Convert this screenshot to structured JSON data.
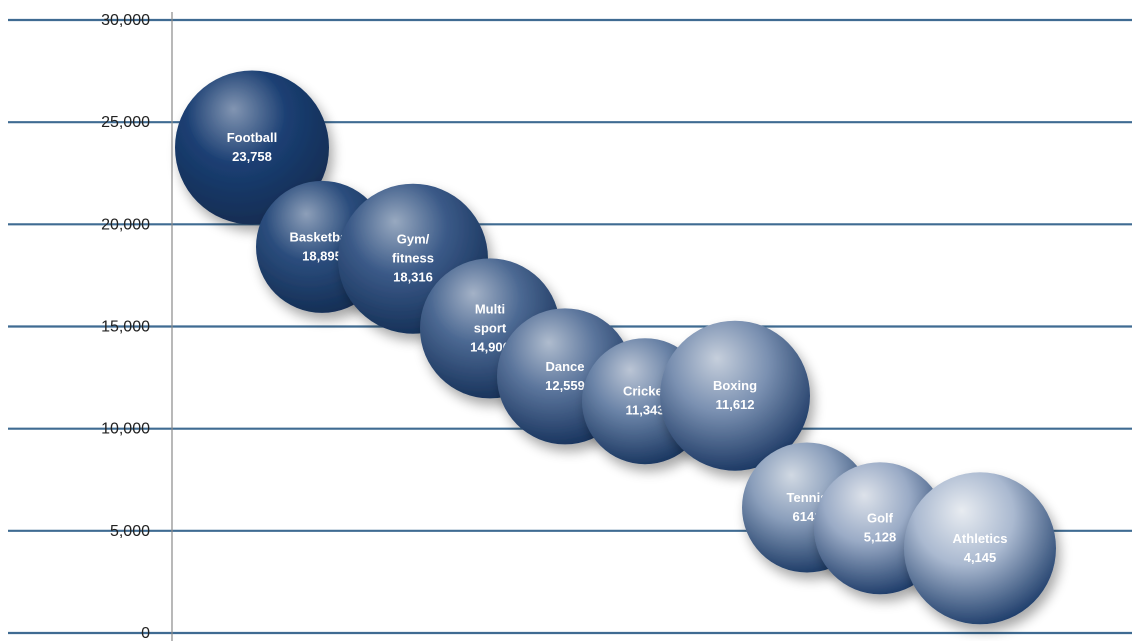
{
  "colors": {
    "background": "#ffffff",
    "gridline": "#3f6b92",
    "axis": "#8a8a8a",
    "sphere_dark": "#1b3f73",
    "sphere_light": "#aab9d0"
  },
  "chart_data": {
    "type": "scatter",
    "title": "",
    "xlabel": "",
    "ylabel": "",
    "ylim": [
      0,
      30000
    ],
    "yticks": [
      {
        "value": 0,
        "label": "0"
      },
      {
        "value": 5000,
        "label": "5,000"
      },
      {
        "value": 10000,
        "label": "10,000"
      },
      {
        "value": 15000,
        "label": "15,000"
      },
      {
        "value": 20000,
        "label": "20,000"
      },
      {
        "value": 25000,
        "label": "25,000"
      },
      {
        "value": 30000,
        "label": "30,000"
      }
    ],
    "grid": true,
    "legend": "none",
    "points": [
      {
        "category": "Football",
        "value": 23758,
        "lines": [
          "Football",
          "23,758"
        ]
      },
      {
        "category": "Basketball",
        "value": 18895,
        "lines": [
          "Basketball",
          "18,895"
        ]
      },
      {
        "category": "Gym/ fitness",
        "value": 18316,
        "lines": [
          "Gym/",
          "fitness",
          "18,316"
        ]
      },
      {
        "category": "Multi sport",
        "value": 14906,
        "lines": [
          "Multi",
          "sport",
          "14,906"
        ]
      },
      {
        "category": "Dance",
        "value": 12559,
        "lines": [
          "Dance",
          "12,559"
        ]
      },
      {
        "category": "Cricket",
        "value": 11343,
        "lines": [
          "Cricket",
          "11,343"
        ]
      },
      {
        "category": "Boxing",
        "value": 11612,
        "lines": [
          "Boxing",
          "11,612"
        ]
      },
      {
        "category": "Tennis",
        "value": 6141,
        "lines": [
          "Tennis",
          "6141"
        ]
      },
      {
        "category": "Golf",
        "value": 5128,
        "lines": [
          "Golf",
          "5,128"
        ]
      },
      {
        "category": "Athletics",
        "value": 4145,
        "lines": [
          "Athletics",
          "4,145"
        ]
      }
    ]
  }
}
